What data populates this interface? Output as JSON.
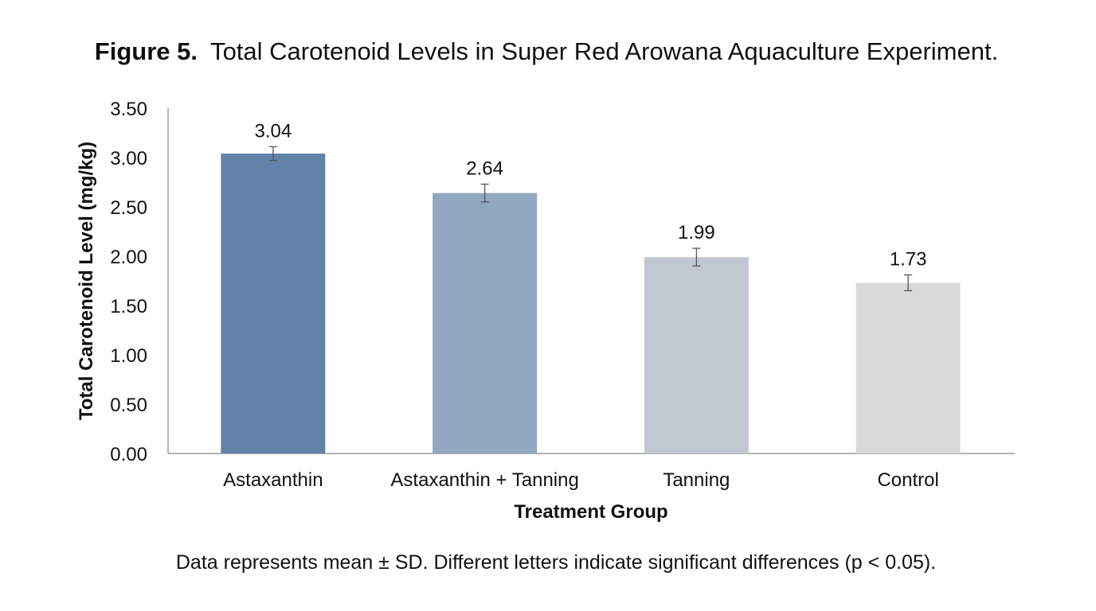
{
  "figure": {
    "label": "Figure 5.",
    "title": "Total Carotenoid Levels in Super Red Arowana Aquaculture Experiment.",
    "footnote": "Data represents mean ± SD. Different letters indicate significant differences (p < 0.05)."
  },
  "chart_data": {
    "type": "bar",
    "title": "Figure 5. Total Carotenoid Levels in Super Red Arowana Aquaculture Experiment.",
    "xlabel": "Treatment Group",
    "ylabel": "Total Carotenoid Level (mg/kg)",
    "categories": [
      "Astaxanthin",
      "Astaxanthin + Tanning",
      "Tanning",
      "Control"
    ],
    "values": [
      3.04,
      2.64,
      1.99,
      1.73
    ],
    "value_labels": [
      "3.04",
      "2.64",
      "1.99",
      "1.73"
    ],
    "error": [
      0.07,
      0.09,
      0.09,
      0.08
    ],
    "colors": [
      "#6182a9",
      "#91a7bf",
      "#c2c8d1",
      "#d9d9d9"
    ],
    "ylim": [
      0,
      3.5
    ],
    "yticks": [
      "0.00",
      "0.50",
      "1.00",
      "1.50",
      "2.00",
      "2.50",
      "3.00",
      "3.50"
    ],
    "ytick_values": [
      0,
      0.5,
      1.0,
      1.5,
      2.0,
      2.5,
      3.0,
      3.5
    ],
    "grid": false,
    "legend": "none"
  }
}
